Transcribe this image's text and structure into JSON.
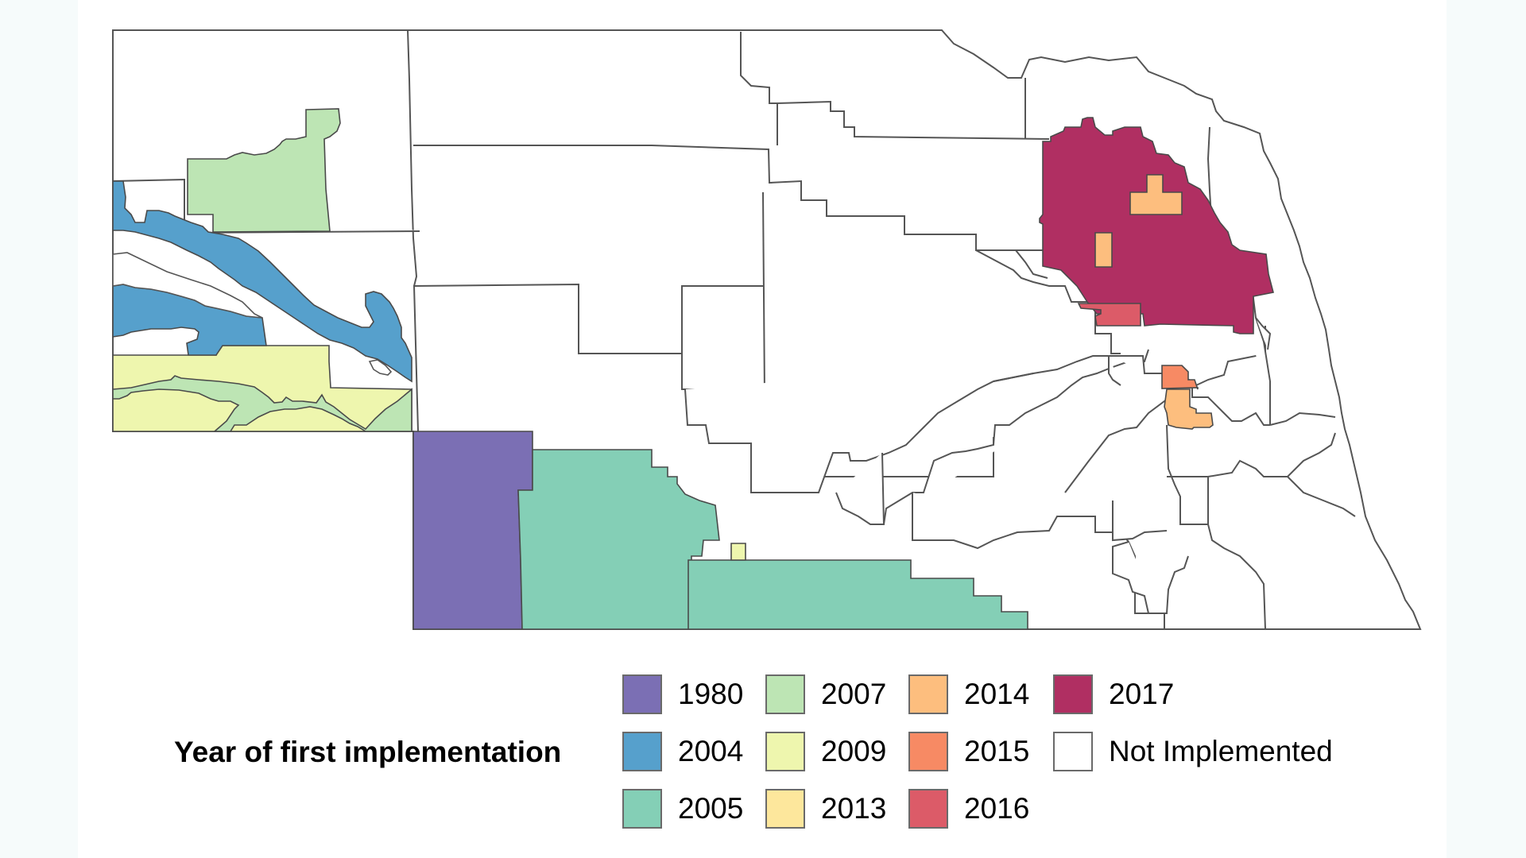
{
  "legend": {
    "title": "Year of first implementation",
    "items": [
      {
        "label": "1980",
        "color": "#7b6fb4",
        "col": 0,
        "row": 0
      },
      {
        "label": "2004",
        "color": "#56a0cc",
        "col": 0,
        "row": 1
      },
      {
        "label": "2005",
        "color": "#84cfb6",
        "col": 0,
        "row": 2
      },
      {
        "label": "2007",
        "color": "#bde5b4",
        "col": 1,
        "row": 0
      },
      {
        "label": "2009",
        "color": "#eef6ae",
        "col": 1,
        "row": 1
      },
      {
        "label": "2013",
        "color": "#fde79c",
        "col": 1,
        "row": 2
      },
      {
        "label": "2014",
        "color": "#fdbe7e",
        "col": 2,
        "row": 0
      },
      {
        "label": "2015",
        "color": "#f78a64",
        "col": 2,
        "row": 1
      },
      {
        "label": "2016",
        "color": "#dc5b68",
        "col": 2,
        "row": 2
      },
      {
        "label": "2017",
        "color": "#b02f62",
        "col": 3,
        "row": 0
      },
      {
        "label": "Not Implemented",
        "color": "#ffffff",
        "col": 3,
        "row": 1
      }
    ]
  },
  "chart_data": {
    "type": "choropleth",
    "title": "",
    "legend_title": "Year of first implementation",
    "legend_position": "bottom",
    "categories": [
      "1980",
      "2004",
      "2005",
      "2007",
      "2009",
      "2013",
      "2014",
      "2015",
      "2016",
      "2017",
      "Not Implemented"
    ],
    "colors": {
      "1980": "#7b6fb4",
      "2004": "#56a0cc",
      "2005": "#84cfb6",
      "2007": "#bde5b4",
      "2009": "#eef6ae",
      "2013": "#fde79c",
      "2014": "#fdbe7e",
      "2015": "#f78a64",
      "2016": "#dc5b68",
      "2017": "#b02f62",
      "Not Implemented": "#ffffff"
    },
    "regions": [
      {
        "category": "1980",
        "location": "southwest-central, rectangular district south of panhandle"
      },
      {
        "category": "2004",
        "location": "western panhandle, diagonal river-valley corridor"
      },
      {
        "category": "2005",
        "location": "south-central, two districts along southern border"
      },
      {
        "category": "2007",
        "location": "northwest panhandle block and narrow river strip in southern panhandle"
      },
      {
        "category": "2009",
        "location": "southern panhandle and small parcel in south-central"
      },
      {
        "category": "2013",
        "location": "none visible"
      },
      {
        "category": "2014",
        "location": "two parcels inside northeast district and parcel east-central"
      },
      {
        "category": "2015",
        "location": "small parcel east-central"
      },
      {
        "category": "2016",
        "location": "small parcel at southwest corner of northeast district"
      },
      {
        "category": "2017",
        "location": "large northeast district"
      }
    ],
    "grid": false
  }
}
